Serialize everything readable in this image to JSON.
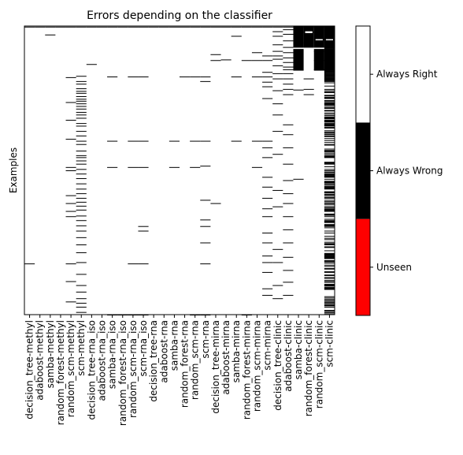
{
  "chart_data": {
    "type": "heatmap",
    "title": "Errors depending on the classifier",
    "xlabel": "",
    "ylabel": "Examples",
    "grid": false,
    "classifiers": [
      "decision_tree-methyl",
      "adaboost-methyl",
      "samba-methyl",
      "random_forest-methyl",
      "random_scm-methyl",
      "scm-methyl",
      "decision_tree-rna_iso",
      "adaboost-rna_iso",
      "samba-rna_iso",
      "random_forest-rna_iso",
      "random_scm-rna_iso",
      "scm-rna_iso",
      "decision_tree-rna",
      "adaboost-rna",
      "samba-rna",
      "random_forest-rna",
      "random_scm-rna",
      "scm-rna",
      "decision_tree-mirna",
      "adaboost-mirna",
      "samba-mirna",
      "random_forest-mirna",
      "random_scm-mirna",
      "scm-mirna",
      "decision_tree-clinic",
      "adaboost-clinic",
      "samba-clinic",
      "random_forest-clinic",
      "random_scm-clinic",
      "scm-clinic"
    ],
    "colorbar": {
      "labels": [
        "Unseen",
        "Always Wrong",
        "Always Right"
      ],
      "colors": [
        "#ff0000",
        "#000000",
        "#ffffff"
      ]
    },
    "n_examples_approx": 440,
    "errors": [
      {
        "classifier": 0,
        "rows": [
          1,
          362
        ]
      },
      {
        "classifier": 1,
        "rows": [
          1
        ]
      },
      {
        "classifier": 2,
        "rows": [
          1,
          13
        ]
      },
      {
        "classifier": 3,
        "rows": [
          1
        ]
      },
      {
        "classifier": 4,
        "rows": [
          1,
          78,
          116,
          143,
          172,
          215,
          220,
          258,
          270,
          282,
          290,
          362,
          389,
          420
        ]
      },
      {
        "classifier": 5,
        "rows": [
          1,
          76,
          84,
          88,
          95,
          99,
          102,
          107,
          111,
          114,
          118,
          122,
          126,
          131,
          135,
          140,
          148,
          152,
          160,
          167,
          175,
          180,
          190,
          197,
          200,
          205,
          210,
          218,
          225,
          232,
          240,
          248,
          255,
          262,
          268,
          274,
          280,
          289,
          296,
          304,
          312,
          322,
          333,
          345,
          360,
          378,
          395,
          405,
          415,
          422,
          428,
          436
        ]
      },
      {
        "classifier": 6,
        "rows": [
          1,
          58
        ]
      },
      {
        "classifier": 7,
        "rows": [
          1
        ]
      },
      {
        "classifier": 8,
        "rows": [
          1,
          77,
          175,
          215,
          440
        ]
      },
      {
        "classifier": 9,
        "rows": [
          1,
          440
        ]
      },
      {
        "classifier": 10,
        "rows": [
          1,
          77,
          175,
          215,
          362,
          440
        ]
      },
      {
        "classifier": 11,
        "rows": [
          1,
          77,
          175,
          215,
          305,
          312,
          362,
          440
        ]
      },
      {
        "classifier": 12,
        "rows": [
          1
        ]
      },
      {
        "classifier": 13,
        "rows": [
          1
        ]
      },
      {
        "classifier": 14,
        "rows": [
          1,
          175,
          215
        ]
      },
      {
        "classifier": 15,
        "rows": [
          1,
          77
        ]
      },
      {
        "classifier": 16,
        "rows": [
          1,
          77,
          175,
          215,
          440
        ]
      },
      {
        "classifier": 17,
        "rows": [
          1,
          77,
          84,
          175,
          213,
          265,
          295,
          305,
          330,
          362,
          440
        ]
      },
      {
        "classifier": 18,
        "rows": [
          1,
          43,
          52,
          270
        ]
      },
      {
        "classifier": 19,
        "rows": [
          1,
          51
        ]
      },
      {
        "classifier": 20,
        "rows": [
          1,
          15,
          77,
          175
        ]
      },
      {
        "classifier": 21,
        "rows": [
          1,
          52,
          440
        ]
      },
      {
        "classifier": 22,
        "rows": [
          1,
          40,
          52,
          77,
          175,
          215
        ]
      },
      {
        "classifier": 23,
        "rows": [
          1,
          45,
          52,
          70,
          77,
          85,
          92,
          110,
          175,
          185,
          200,
          230,
          245,
          262,
          278,
          290,
          315,
          330,
          350,
          360,
          375,
          400,
          410
        ]
      },
      {
        "classifier": 24,
        "rows": [
          1,
          8,
          15,
          28,
          38,
          45,
          50,
          60,
          72,
          80,
          98,
          118,
          135,
          160,
          195,
          250,
          275,
          340,
          360,
          395,
          415
        ]
      },
      {
        "classifier": 25,
        "rows": [
          1,
          5,
          12,
          22,
          32,
          40,
          48,
          55,
          62,
          66,
          72,
          80,
          88,
          96,
          104,
          150,
          165,
          185,
          210,
          235,
          255,
          270,
          290,
          310,
          330,
          352,
          372,
          390,
          410
        ]
      },
      {
        "classifier": 26,
        "rows": [
          25,
          97,
          233
        ]
      },
      {
        "classifier": 27,
        "rows": [
          1,
          80,
          96,
          104
        ]
      },
      {
        "classifier": 28,
        "rows": [
          1,
          38,
          52,
          66
        ]
      },
      {
        "classifier": 29,
        "rows": "majority"
      }
    ],
    "error_blocks": [
      {
        "classifiers": [
          26,
          27,
          28,
          29
        ],
        "from_row": 0,
        "to_row": 33
      },
      {
        "classifiers": [
          26
        ],
        "from_row": 35,
        "to_row": 68
      },
      {
        "classifiers": [
          28,
          29
        ],
        "from_row": 35,
        "to_row": 68
      }
    ]
  }
}
